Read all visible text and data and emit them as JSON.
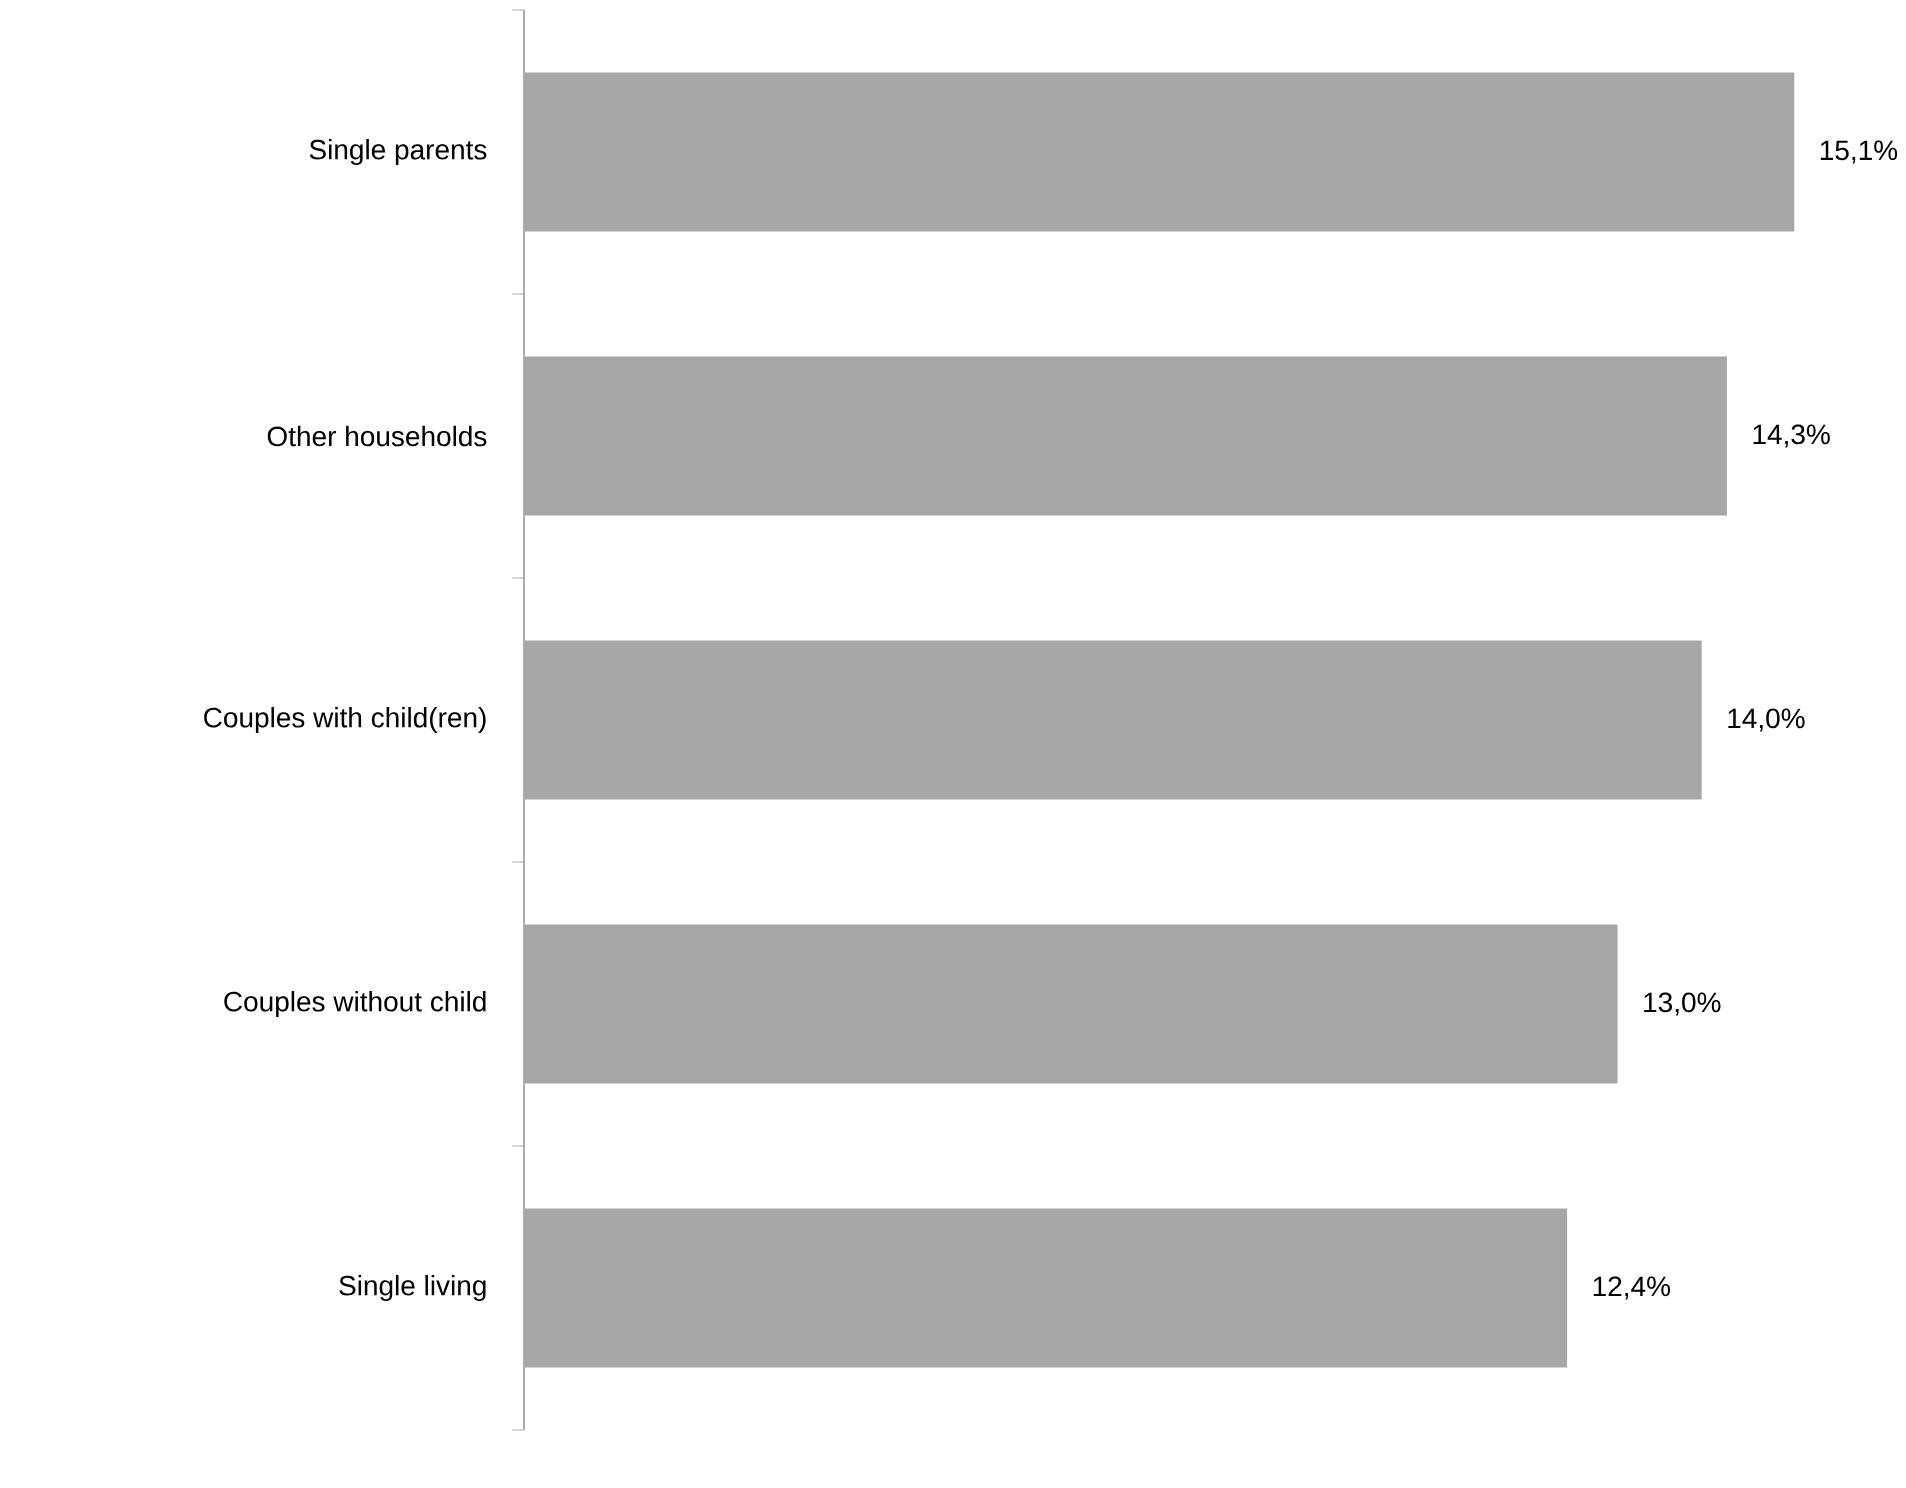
{
  "chart_data": {
    "type": "bar",
    "orientation": "horizontal",
    "categories": [
      "Single parents",
      "Other households",
      "Couples with child(ren)",
      "Couples without child",
      "Single living"
    ],
    "values": [
      15.1,
      14.3,
      14.0,
      13.0,
      12.4
    ],
    "value_labels": [
      "15,1%",
      "14,3%",
      "14,0%",
      "13,0%",
      "12,4%"
    ],
    "color": "#a6a6a6"
  }
}
